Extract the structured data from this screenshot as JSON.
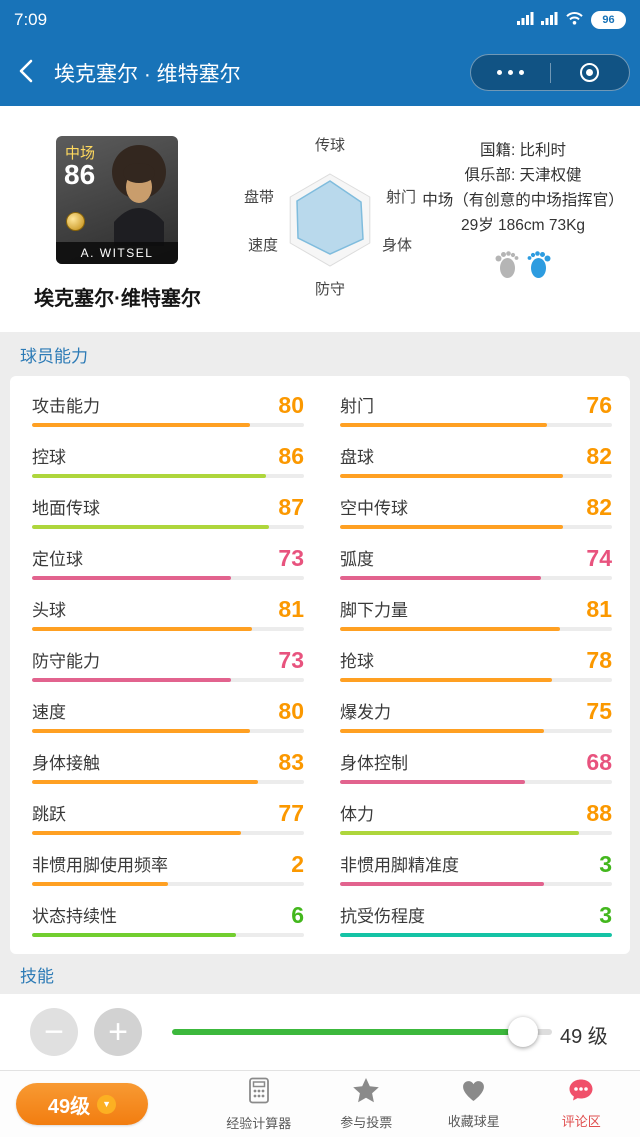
{
  "status_bar": {
    "time": "7:09",
    "battery": "96"
  },
  "nav": {
    "title": "埃克塞尔 · 维特塞尔"
  },
  "player": {
    "card": {
      "position": "中场",
      "rating": "86",
      "name": "A. WITSEL"
    },
    "full_name": "埃克塞尔·维特塞尔",
    "info": {
      "nationality": "国籍: 比利时",
      "club": "俱乐部: 天津权健",
      "role": "中场（有创意的中场指挥官）",
      "body": "29岁 186cm 73Kg"
    },
    "radar": {
      "labels": [
        "传球",
        "射门",
        "身体",
        "防守",
        "速度",
        "盘带"
      ]
    }
  },
  "sections": {
    "abilities": "球员能力",
    "skills": "技能"
  },
  "colors": {
    "theme_blue": "#1873b8",
    "section_blue": "#2d7bb6",
    "num_orange": "#fb9800",
    "num_pink": "#e8537e",
    "num_green": "#43b71d",
    "bar_orange": "#ffa022",
    "bar_yellowgreen": "#aed63c",
    "bar_pink": "#e2638e",
    "bar_green": "#72ce2f",
    "bar_teal": "#15c3a5",
    "slider_green": "#3cb83c",
    "button_orange": "#f68b1f",
    "comment_red": "#f0506a"
  },
  "stats": {
    "left": [
      {
        "label": "攻击能力",
        "value": "80",
        "num_color": "#fb9800",
        "bar_color": "#ffa022",
        "pct": 80
      },
      {
        "label": "控球",
        "value": "86",
        "num_color": "#fb9800",
        "bar_color": "#aed63c",
        "pct": 86
      },
      {
        "label": "地面传球",
        "value": "87",
        "num_color": "#fb9800",
        "bar_color": "#aed63c",
        "pct": 87
      },
      {
        "label": "定位球",
        "value": "73",
        "num_color": "#e8537e",
        "bar_color": "#e2638e",
        "pct": 73
      },
      {
        "label": "头球",
        "value": "81",
        "num_color": "#fb9800",
        "bar_color": "#ffa022",
        "pct": 81
      },
      {
        "label": "防守能力",
        "value": "73",
        "num_color": "#e8537e",
        "bar_color": "#e2638e",
        "pct": 73
      },
      {
        "label": "速度",
        "value": "80",
        "num_color": "#fb9800",
        "bar_color": "#ffa022",
        "pct": 80
      },
      {
        "label": "身体接触",
        "value": "83",
        "num_color": "#fb9800",
        "bar_color": "#ffa022",
        "pct": 83
      },
      {
        "label": "跳跃",
        "value": "77",
        "num_color": "#fb9800",
        "bar_color": "#ffa022",
        "pct": 77
      },
      {
        "label": "非惯用脚使用频率",
        "value": "2",
        "num_color": "#fb9800",
        "bar_color": "#ffa022",
        "pct": 50
      },
      {
        "label": "状态持续性",
        "value": "6",
        "num_color": "#43b71d",
        "bar_color": "#72ce2f",
        "pct": 75
      }
    ],
    "right": [
      {
        "label": "射门",
        "value": "76",
        "num_color": "#fb9800",
        "bar_color": "#ffa022",
        "pct": 76
      },
      {
        "label": "盘球",
        "value": "82",
        "num_color": "#fb9800",
        "bar_color": "#ffa022",
        "pct": 82
      },
      {
        "label": "空中传球",
        "value": "82",
        "num_color": "#fb9800",
        "bar_color": "#ffa022",
        "pct": 82
      },
      {
        "label": "弧度",
        "value": "74",
        "num_color": "#e8537e",
        "bar_color": "#e2638e",
        "pct": 74
      },
      {
        "label": "脚下力量",
        "value": "81",
        "num_color": "#fb9800",
        "bar_color": "#ffa022",
        "pct": 81
      },
      {
        "label": "抢球",
        "value": "78",
        "num_color": "#fb9800",
        "bar_color": "#ffa022",
        "pct": 78
      },
      {
        "label": "爆发力",
        "value": "75",
        "num_color": "#fb9800",
        "bar_color": "#ffa022",
        "pct": 75
      },
      {
        "label": "身体控制",
        "value": "68",
        "num_color": "#e8537e",
        "bar_color": "#e2638e",
        "pct": 68
      },
      {
        "label": "体力",
        "value": "88",
        "num_color": "#fb9800",
        "bar_color": "#aed63c",
        "pct": 88
      },
      {
        "label": "非惯用脚精准度",
        "value": "3",
        "num_color": "#43b71d",
        "bar_color": "#e2638e",
        "pct": 75
      },
      {
        "label": "抗受伤程度",
        "value": "3",
        "num_color": "#43b71d",
        "bar_color": "#15c3a5",
        "pct": 100
      }
    ]
  },
  "slider": {
    "level": "49 级",
    "minus": "−",
    "plus": "+"
  },
  "footer": {
    "level_button": "49级",
    "level_badge_icon": "chevron-down",
    "items": [
      {
        "label": "经验计算器",
        "icon": "calculator-icon"
      },
      {
        "label": "参与投票",
        "icon": "star-icon"
      },
      {
        "label": "收藏球星",
        "icon": "heart-icon"
      },
      {
        "label": "评论区",
        "icon": "comment-icon"
      }
    ]
  }
}
